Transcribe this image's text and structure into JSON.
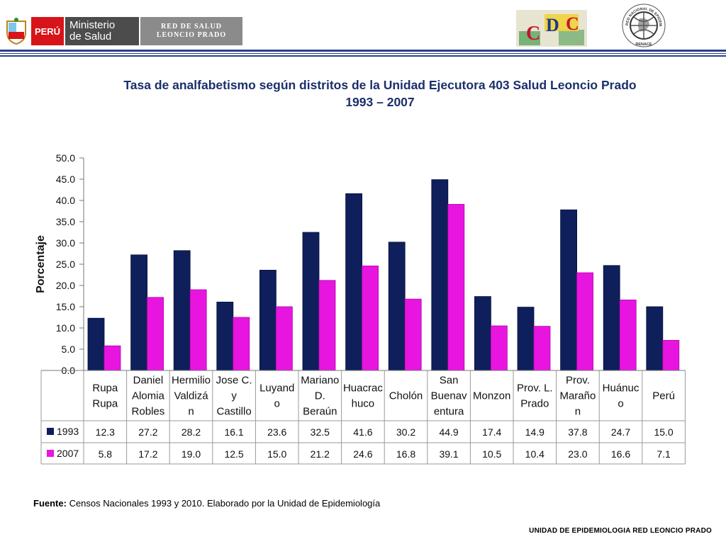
{
  "header": {
    "peru_label": "PERÚ",
    "ministry_line1": "Ministerio",
    "ministry_line2": "de Salud",
    "red_line1": "RED DE SALUD",
    "red_line2": "LEONCIO PRADO",
    "renace_text": "RED NACIONAL DE EPIDEMIOLOGIA",
    "renace_bottom": "RENACE",
    "brand_red": "#d7141a",
    "line_blue": "#2b3f8c"
  },
  "title_line1": "Tasa de analfabetismo según distritos de la Unidad Ejecutora 403 Salud  Leoncio Prado",
  "title_line2": "1993 – 2007",
  "source_label": "Fuente:",
  "source_text": " Censos Nacionales 1993 y 2010. Elaborado por la Unidad de Epidemiología",
  "footer": "UNIDAD  DE EPIDEMIOLOGIA RED LEONCIO PRADO",
  "chart_data": {
    "type": "bar",
    "title": "Tasa de analfabetismo según distritos de la Unidad Ejecutora 403 Salud  Leoncio Prado 1993 – 2007",
    "xlabel": "",
    "ylabel": "Porcentaje",
    "ylim": [
      0,
      50
    ],
    "yticks": [
      "0.0",
      "5.0",
      "10.0",
      "15.0",
      "20.0",
      "25.0",
      "30.0",
      "35.0",
      "40.0",
      "45.0",
      "50.0"
    ],
    "categories": [
      [
        "Rupa",
        "Rupa"
      ],
      [
        "Daniel",
        "Alomia",
        "Robles"
      ],
      [
        "Hermilio",
        "Valdizá",
        "n"
      ],
      [
        "Jose C.",
        "y",
        "Castillo"
      ],
      [
        "Luyand",
        "o"
      ],
      [
        "Mariano",
        "D.",
        "Beraún"
      ],
      [
        "Huacrac",
        "huco"
      ],
      [
        "Cholón"
      ],
      [
        "San",
        "Buenav",
        "entura"
      ],
      [
        "Monzon"
      ],
      [
        "Prov. L.",
        "Prado"
      ],
      [
        "Prov.",
        "Maraño",
        "n"
      ],
      [
        "Huánuc",
        "o"
      ],
      [
        "Perú"
      ]
    ],
    "series": [
      {
        "name": "1993",
        "color": "#0f1f5c",
        "values": [
          12.3,
          27.2,
          28.2,
          16.1,
          23.6,
          32.5,
          41.6,
          30.2,
          44.9,
          17.4,
          14.9,
          37.8,
          24.7,
          15.0
        ],
        "labels": [
          "12.3",
          "27.2",
          "28.2",
          "16.1",
          "23.6",
          "32.5",
          "41.6",
          "30.2",
          "44.9",
          "17.4",
          "14.9",
          "37.8",
          "24.7",
          "15.0"
        ]
      },
      {
        "name": "2007",
        "color": "#e815e0",
        "values": [
          5.8,
          17.2,
          19.0,
          12.5,
          15.0,
          21.2,
          24.6,
          16.8,
          39.1,
          10.5,
          10.4,
          23.0,
          16.6,
          7.1
        ],
        "labels": [
          "5.8",
          "17.2",
          "19.0",
          "12.5",
          "15.0",
          "21.2",
          "24.6",
          "16.8",
          "39.1",
          "10.5",
          "10.4",
          "23.0",
          "16.6",
          "7.1"
        ]
      }
    ],
    "grid": false,
    "legend": "data-table"
  }
}
